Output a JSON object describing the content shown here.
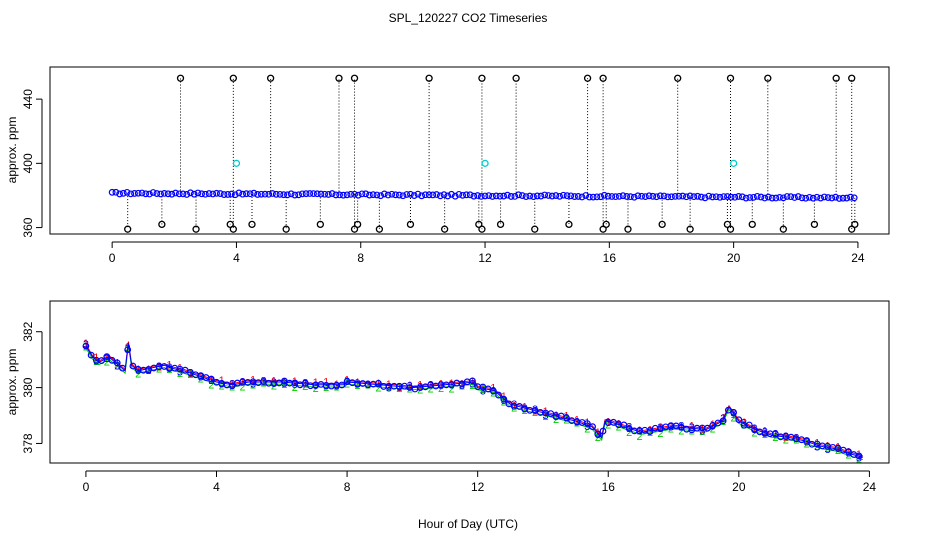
{
  "figure_title": "SPL_120227  CO2 Timeseries",
  "x_axis_label": "Hour of Day (UTC)",
  "colors": {
    "raw_points": "#000000",
    "mean_points": "#0000ff",
    "calib_points": "#00cccc",
    "series_red": "#ff0000",
    "series_green": "#00cc00",
    "series_blue": "#0000ff"
  },
  "chart_data": [
    {
      "type": "scatter",
      "title": "",
      "xlabel": "",
      "ylabel": "approx. ppm",
      "xlim": [
        -2.0,
        25.0
      ],
      "ylim": [
        356,
        460
      ],
      "xticks": [
        0,
        4,
        8,
        12,
        16,
        20,
        24
      ],
      "xtick_labels": [
        "0",
        "4",
        "8",
        "12",
        "16",
        "20",
        "24"
      ],
      "yticks": [
        360,
        400,
        440
      ],
      "ytick_labels": [
        "360",
        "400",
        "440"
      ],
      "baseline_start": 381.5,
      "baseline_end": 378.5,
      "high_spike_value": 453,
      "high_spike_hours": [
        2.2,
        3.9,
        5.1,
        7.3,
        7.8,
        10.2,
        11.9,
        13.0,
        15.3,
        15.8,
        18.2,
        19.9,
        21.1,
        23.3,
        23.8
      ],
      "low_outlier_hours": [
        0.5,
        1.6,
        2.7,
        3.8,
        3.9,
        4.5,
        5.6,
        6.7,
        7.8,
        7.9,
        8.6,
        9.6,
        10.7,
        11.8,
        11.9,
        12.5,
        13.6,
        14.7,
        15.8,
        15.9,
        16.6,
        17.7,
        18.6,
        19.8,
        19.9,
        20.6,
        21.6,
        22.6,
        23.8,
        23.9
      ],
      "calibration_points": [
        {
          "x": 4.0,
          "y": 400
        },
        {
          "x": 12.0,
          "y": 400
        },
        {
          "x": 20.0,
          "y": 400
        }
      ]
    },
    {
      "type": "line",
      "title": "",
      "xlabel": "Hour of Day (UTC)",
      "ylabel": "approx. ppm",
      "xlim": [
        -1.1,
        24.6
      ],
      "ylim": [
        377.3,
        383.1
      ],
      "xticks": [
        0,
        4,
        8,
        12,
        16,
        20,
        24
      ],
      "xtick_labels": [
        "0",
        "4",
        "8",
        "12",
        "16",
        "20",
        "24"
      ],
      "yticks": [
        378,
        380,
        382
      ],
      "ytick_labels": [
        "378",
        "380",
        "382"
      ],
      "series_markers": [
        "1",
        "2",
        "3"
      ],
      "x": [
        0.0,
        0.2,
        0.4,
        0.7,
        1.0,
        1.2,
        1.3,
        1.4,
        1.6,
        2.0,
        2.4,
        2.6,
        3.0,
        3.5,
        4.0,
        4.5,
        5.0,
        6.0,
        7.0,
        7.9,
        8.0,
        9.0,
        10.0,
        11.0,
        11.9,
        12.0,
        12.5,
        13.0,
        14.0,
        15.0,
        15.5,
        15.8,
        15.9,
        16.0,
        16.5,
        17.0,
        18.0,
        19.0,
        19.5,
        19.7,
        20.0,
        20.5,
        21.0,
        21.6,
        22.0,
        22.5,
        23.0,
        23.5,
        23.8
      ],
      "y": [
        381.5,
        381.1,
        380.9,
        381.1,
        380.8,
        380.6,
        381.6,
        380.8,
        380.6,
        380.7,
        380.8,
        380.7,
        380.6,
        380.4,
        380.2,
        380.1,
        380.2,
        380.2,
        380.1,
        380.1,
        380.2,
        380.1,
        380.0,
        380.1,
        380.2,
        380.0,
        379.9,
        379.4,
        379.1,
        378.8,
        378.6,
        378.2,
        378.8,
        378.8,
        378.6,
        378.4,
        378.6,
        378.5,
        378.8,
        379.3,
        378.8,
        378.5,
        378.3,
        378.2,
        378.1,
        377.9,
        377.8,
        377.6,
        377.5
      ]
    }
  ]
}
